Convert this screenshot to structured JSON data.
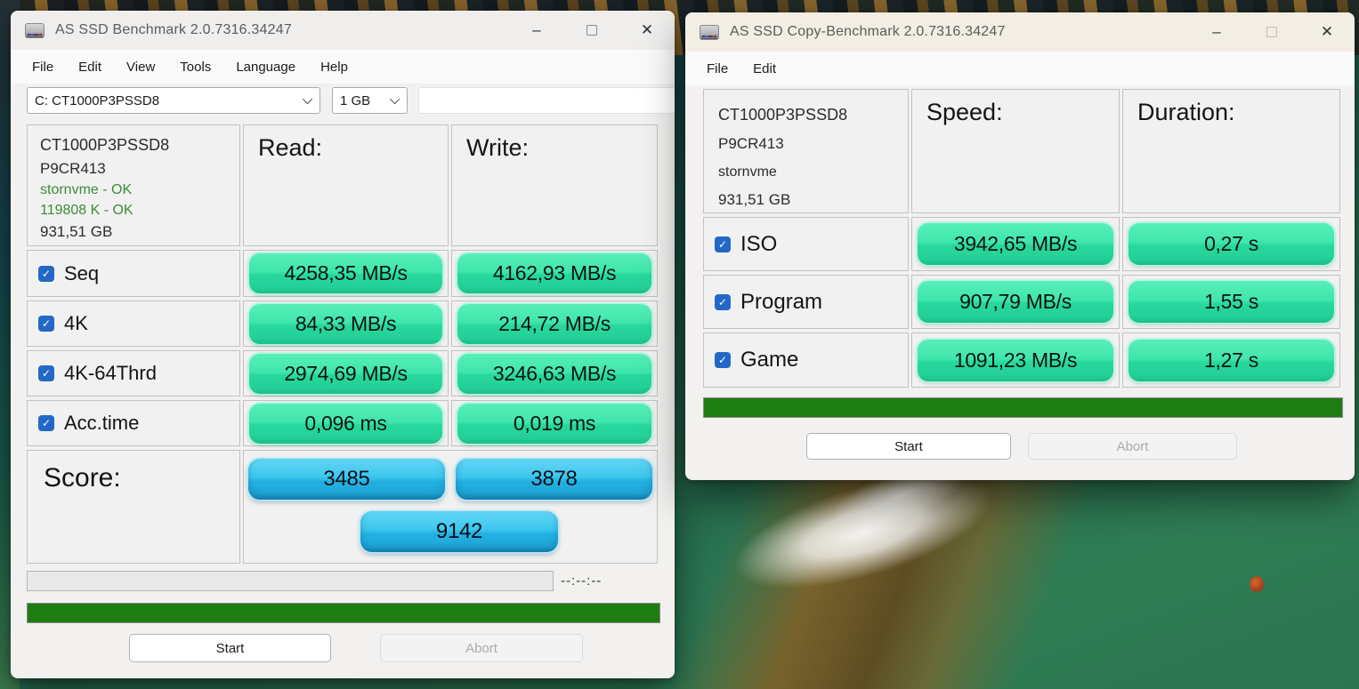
{
  "left_window": {
    "title": "AS SSD Benchmark 2.0.7316.34247",
    "menu": [
      "File",
      "Edit",
      "View",
      "Tools",
      "Language",
      "Help"
    ],
    "drive_select_value": "C: CT1000P3PSSD8",
    "size_select_value": "1 GB",
    "result_field_value": "",
    "info": {
      "model": "CT1000P3PSSD8",
      "firmware": "P9CR413",
      "driver": "stornvme - OK",
      "alignment": "119808 K - OK",
      "capacity": "931,51 GB"
    },
    "columns": {
      "read": "Read:",
      "write": "Write:"
    },
    "rows": [
      {
        "label": "Seq",
        "checked": true,
        "read": "4258,35 MB/s",
        "write": "4162,93 MB/s"
      },
      {
        "label": "4K",
        "checked": true,
        "read": "84,33 MB/s",
        "write": "214,72 MB/s"
      },
      {
        "label": "4K-64Thrd",
        "checked": true,
        "read": "2974,69 MB/s",
        "write": "3246,63 MB/s"
      },
      {
        "label": "Acc.time",
        "checked": true,
        "read": "0,096 ms",
        "write": "0,019 ms"
      }
    ],
    "score": {
      "label": "Score:",
      "read_score": "3485",
      "write_score": "3878",
      "total_score": "9142"
    },
    "timer": "--:--:--",
    "buttons": {
      "start": "Start",
      "abort": "Abort"
    }
  },
  "right_window": {
    "title": "AS SSD Copy-Benchmark 2.0.7316.34247",
    "menu": [
      "File",
      "Edit"
    ],
    "info": {
      "model": "CT1000P3PSSD8",
      "firmware": "P9CR413",
      "driver": "stornvme",
      "capacity": "931,51 GB"
    },
    "columns": {
      "speed": "Speed:",
      "duration": "Duration:"
    },
    "rows": [
      {
        "label": "ISO",
        "checked": true,
        "speed": "3942,65 MB/s",
        "duration": "0,27 s"
      },
      {
        "label": "Program",
        "checked": true,
        "speed": "907,79 MB/s",
        "duration": "1,55 s"
      },
      {
        "label": "Game",
        "checked": true,
        "speed": "1091,23 MB/s",
        "duration": "1,27 s"
      }
    ],
    "buttons": {
      "start": "Start",
      "abort": "Abort"
    }
  },
  "glyphs": {
    "check": "✓",
    "minimize": "–",
    "close": "✕"
  },
  "colors": {
    "result_pill_green_top": "#3fe6ab",
    "result_pill_green_bottom": "#1cbd88",
    "score_pill_blue_top": "#3dc7ee",
    "score_pill_blue_bottom": "#1790c1",
    "checkbox_accent": "#2368c6",
    "status_text_green": "#3d8b37",
    "progress_bar_green": "#1e7d12"
  }
}
